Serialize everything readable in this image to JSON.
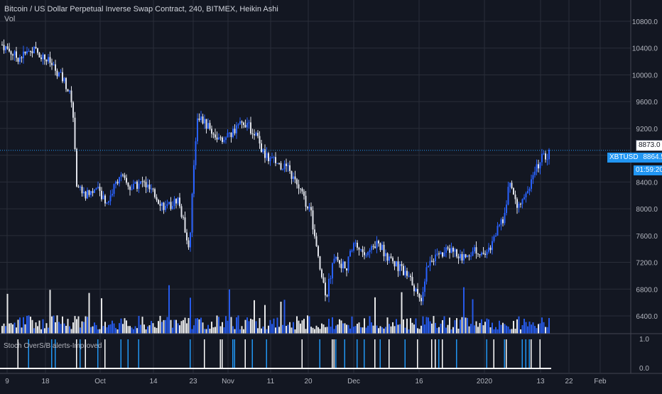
{
  "legend": {
    "title": "Bitcoin / US Dollar Perpetual Inverse Swap Contract, 240, BITMEX, Heikin Ashi",
    "volume_label": "Vol"
  },
  "indicator": {
    "name": "Stoch OverS/B alerts-Improved"
  },
  "badges": {
    "last_price": "8873.0",
    "symbol": "XBTUSD",
    "symbol_price": "8864.5",
    "countdown": "01:59:20"
  },
  "colors": {
    "background": "#131722",
    "up": "#2962ff",
    "down": "#e0e3eb",
    "grid": "#2a2e39",
    "accent": "#2196f3"
  },
  "chart_data": {
    "type": "candlestick",
    "chart_style": "Heikin Ashi",
    "interval": "240",
    "exchange": "BITMEX",
    "y_axis_ticks": [
      6400,
      6800,
      7200,
      7600,
      8000,
      8400,
      8800,
      9200,
      9600,
      10000,
      10400,
      10800
    ],
    "y_axis_labels": [
      "6400.0",
      "6800.0",
      "7200.0",
      "7600.0",
      "8000.0",
      "8400.0",
      "8800.0",
      "9200.0",
      "9600.0",
      "10000.0",
      "10400.0",
      "10800.0"
    ],
    "x_axis_labels": [
      "9",
      "18",
      "Oct",
      "14",
      "23",
      "Nov",
      "11",
      "20",
      "Dec",
      "16",
      "2020",
      "13",
      "22",
      "Feb"
    ],
    "price_path": [
      [
        0,
        10450
      ],
      [
        4,
        10250
      ],
      [
        8,
        10380
      ],
      [
        12,
        10200
      ],
      [
        16,
        9900
      ],
      [
        18,
        9600
      ],
      [
        19,
        8400
      ],
      [
        21,
        8200
      ],
      [
        24,
        8300
      ],
      [
        27,
        8100
      ],
      [
        30,
        8500
      ],
      [
        33,
        8300
      ],
      [
        36,
        8400
      ],
      [
        39,
        8200
      ],
      [
        42,
        8000
      ],
      [
        45,
        8150
      ],
      [
        48,
        7400
      ],
      [
        49,
        8600
      ],
      [
        50,
        9400
      ],
      [
        53,
        9200
      ],
      [
        56,
        9000
      ],
      [
        59,
        9150
      ],
      [
        62,
        9300
      ],
      [
        65,
        9100
      ],
      [
        67,
        8800
      ],
      [
        70,
        8700
      ],
      [
        73,
        8600
      ],
      [
        76,
        8300
      ],
      [
        79,
        7950
      ],
      [
        81,
        7200
      ],
      [
        83,
        6700
      ],
      [
        85,
        7300
      ],
      [
        88,
        7100
      ],
      [
        90,
        7500
      ],
      [
        93,
        7300
      ],
      [
        96,
        7500
      ],
      [
        99,
        7250
      ],
      [
        102,
        7100
      ],
      [
        105,
        6900
      ],
      [
        107,
        6600
      ],
      [
        109,
        7200
      ],
      [
        112,
        7300
      ],
      [
        115,
        7400
      ],
      [
        118,
        7250
      ],
      [
        121,
        7400
      ],
      [
        124,
        7300
      ],
      [
        126,
        7600
      ],
      [
        128,
        7800
      ],
      [
        130,
        8400
      ],
      [
        132,
        8050
      ],
      [
        134,
        8200
      ],
      [
        136,
        8500
      ],
      [
        138,
        8750
      ],
      [
        140,
        8820
      ]
    ],
    "stoch_scale": [
      "0.0",
      "1.0"
    ]
  }
}
